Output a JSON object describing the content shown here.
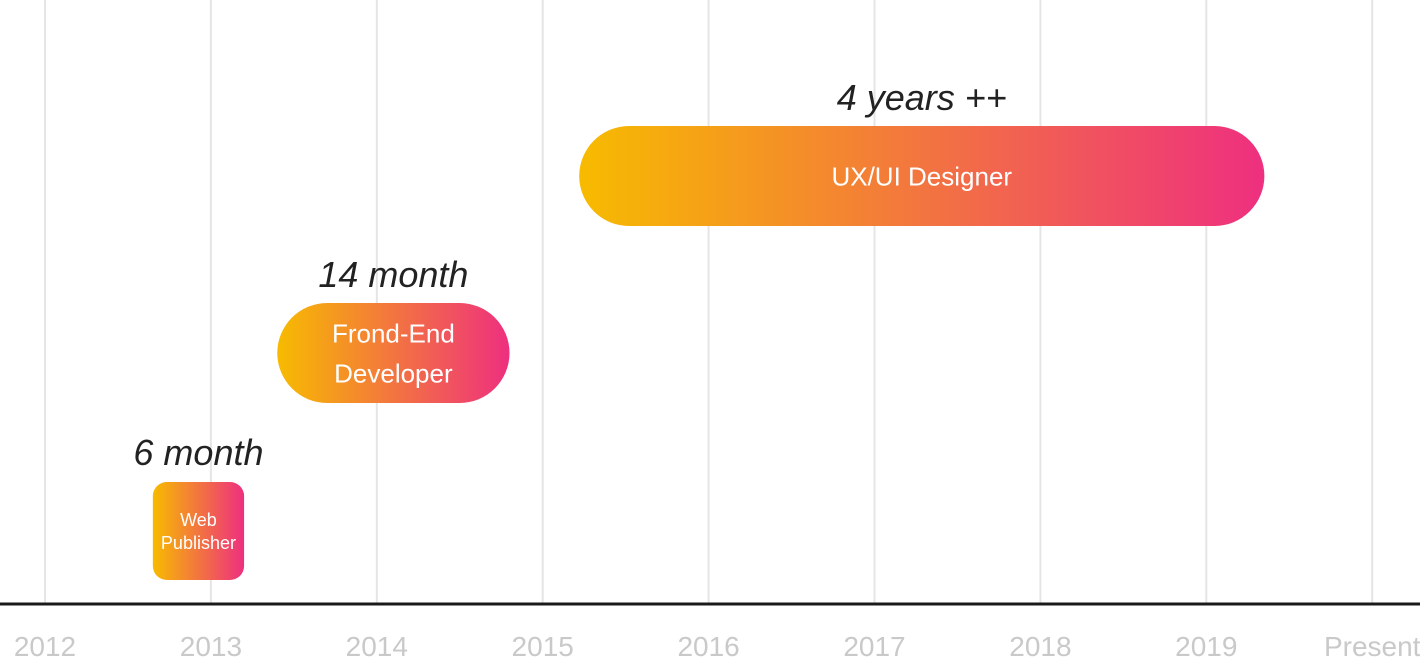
{
  "chart_data": {
    "type": "bar",
    "orientation": "horizontal-timeline",
    "x_ticks": [
      "2012",
      "2013",
      "2014",
      "2015",
      "2016",
      "2017",
      "2018",
      "2019",
      "Present"
    ],
    "x_tick_values": [
      2012,
      2013,
      2014,
      2015,
      2016,
      2017,
      2018,
      2019,
      2020
    ],
    "xlim": [
      2012,
      2020
    ],
    "grid": "vertical",
    "gradient_colors": [
      "#F7BB00",
      "#EE2F7F"
    ],
    "grid_color": "#E5E5E5",
    "axis_color": "#1a1a1a",
    "tick_color": "#C9C9C9",
    "series": [
      {
        "role": "Web Publisher",
        "role_lines": [
          "Web",
          "Publisher"
        ],
        "start": 2012.65,
        "end": 2013.2,
        "duration_label": "6 month"
      },
      {
        "role": "Frond-End Developer",
        "role_lines": [
          "Frond-End",
          "Developer"
        ],
        "start": 2013.4,
        "end": 2014.8,
        "duration_label": "14 month"
      },
      {
        "role": "UX/UI Designer",
        "role_lines": [
          "UX/UI Designer"
        ],
        "start": 2015.22,
        "end": 2019.35,
        "duration_label": "4 years ++"
      }
    ]
  }
}
